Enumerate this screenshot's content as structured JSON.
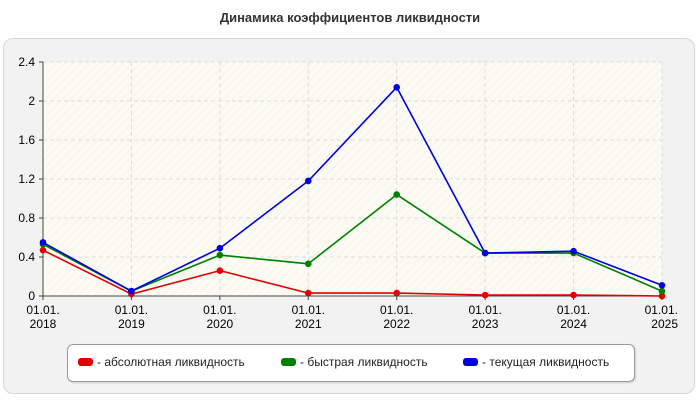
{
  "chart_data": {
    "type": "line",
    "title": "Динамика коэффициентов ликвидности",
    "x": [
      [
        "01.01.",
        "2018"
      ],
      [
        "01.01.",
        "2019"
      ],
      [
        "01.01.",
        "2020"
      ],
      [
        "01.01.",
        "2021"
      ],
      [
        "01.01.",
        "2022"
      ],
      [
        "01.01.",
        "2023"
      ],
      [
        "01.01.",
        "2024"
      ],
      [
        "01.01.",
        "2025"
      ]
    ],
    "ylim": [
      0,
      2.4
    ],
    "yticks": [
      "0",
      "0.4",
      "0.8",
      "1.2",
      "1.6",
      "2",
      "2.4"
    ],
    "grid": true,
    "legend_position": "bottom",
    "series": [
      {
        "name": "- абсолютная ликвидность",
        "color": "#e00000",
        "values": [
          0.47,
          0.02,
          0.26,
          0.03,
          0.03,
          0.01,
          0.01,
          0.0
        ]
      },
      {
        "name": "- быстрая ликвидность",
        "color": "#008000",
        "values": [
          0.53,
          0.05,
          0.42,
          0.33,
          1.04,
          0.44,
          0.44,
          0.05
        ]
      },
      {
        "name": "- текущая ликвидность",
        "color": "#0000e0",
        "values": [
          0.55,
          0.05,
          0.49,
          1.18,
          2.14,
          0.44,
          0.46,
          0.11
        ]
      }
    ]
  }
}
